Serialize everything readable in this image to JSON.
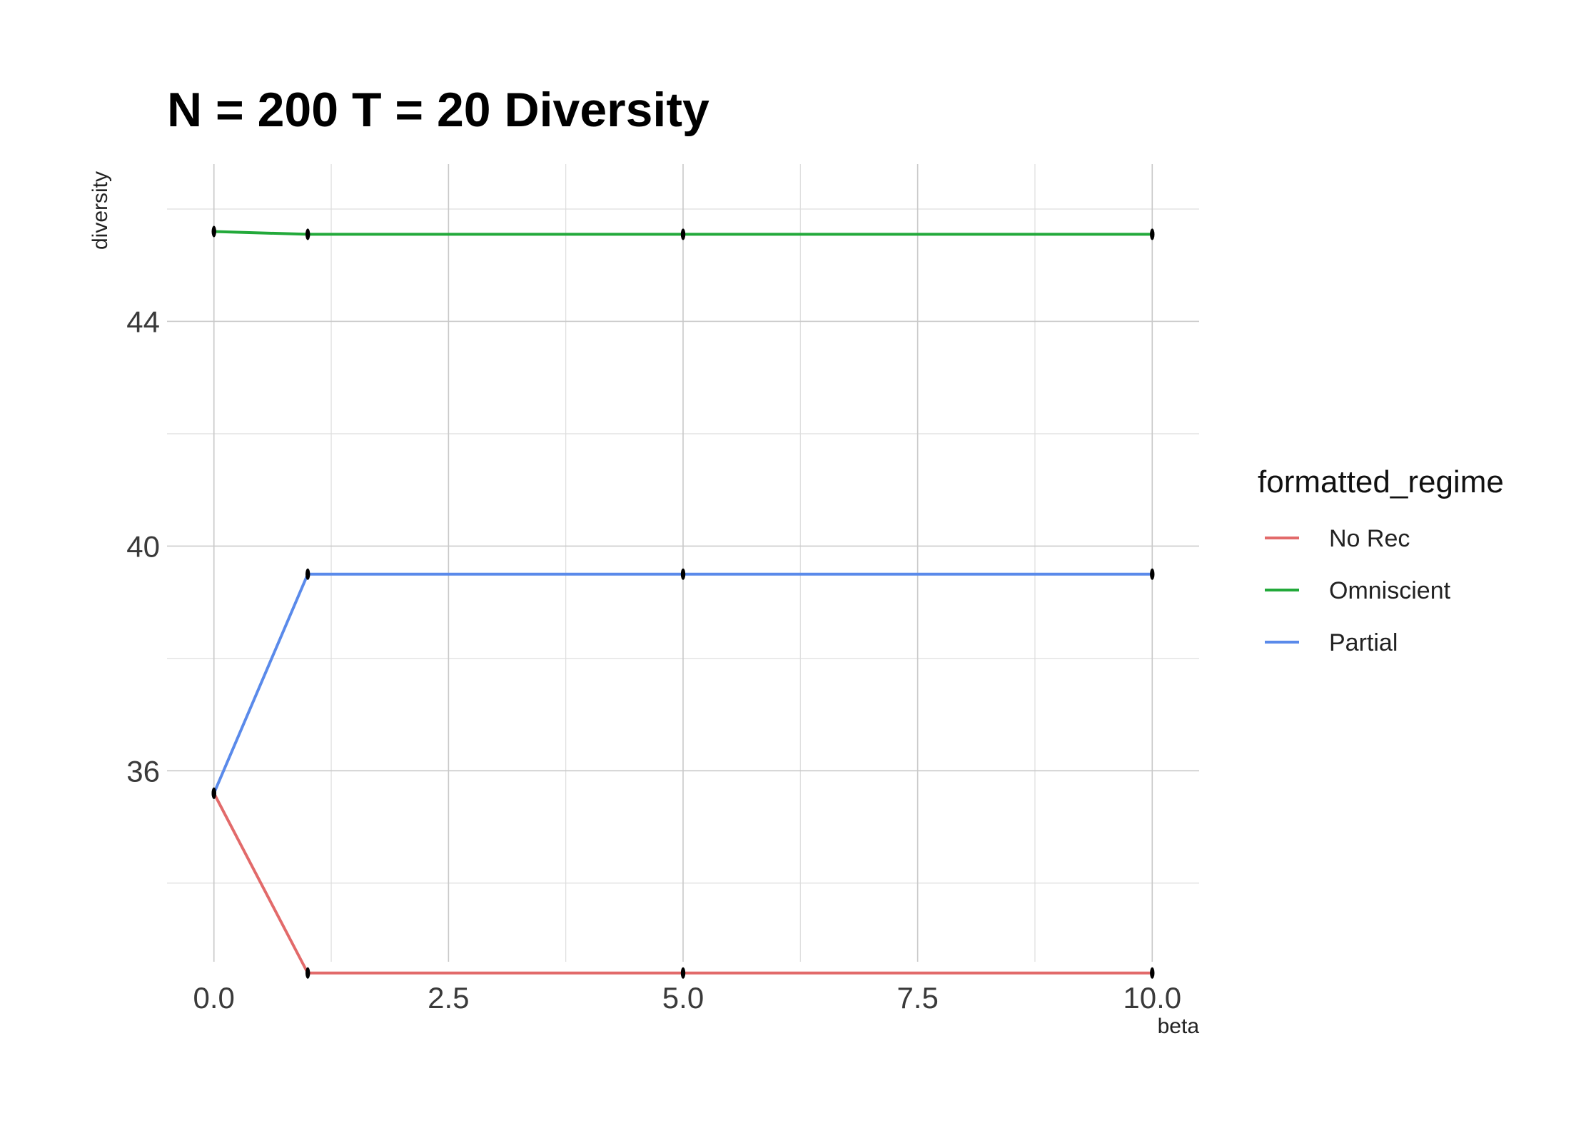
{
  "chart_data": {
    "type": "line",
    "title": "N = 200 T = 20 Diversity",
    "xlabel": "beta",
    "ylabel": "diversity",
    "x": [
      0,
      1,
      5,
      10
    ],
    "xlim": [
      -0.5,
      10.5
    ],
    "ylim": [
      32.6,
      46.8
    ],
    "x_ticks": [
      0.0,
      2.5,
      5.0,
      7.5,
      10.0
    ],
    "x_tick_labels": [
      "0.0",
      "2.5",
      "5.0",
      "7.5",
      "10.0"
    ],
    "y_ticks": [
      36,
      40,
      44
    ],
    "y_tick_labels": [
      "36",
      "40",
      "44"
    ],
    "y_minor_ticks": [
      34,
      38,
      42,
      46
    ],
    "grid": true,
    "legend_title": "formatted_regime",
    "legend_position": "right",
    "series": [
      {
        "name": "No Rec",
        "color": "#e26a6a",
        "values": [
          35.6,
          32.4,
          32.4,
          32.4
        ]
      },
      {
        "name": "Omniscient",
        "color": "#22a93a",
        "values": [
          45.6,
          45.55,
          45.55,
          45.55
        ]
      },
      {
        "name": "Partial",
        "color": "#5a8aea",
        "values": [
          35.6,
          39.5,
          39.5,
          39.5
        ]
      }
    ]
  }
}
